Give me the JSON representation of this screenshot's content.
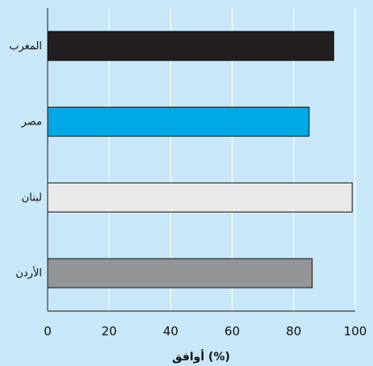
{
  "chart_data": {
    "type": "bar",
    "orientation": "horizontal",
    "categories": [
      "المغرب",
      "مصر",
      "لبنان",
      "الأردن"
    ],
    "values": [
      93,
      85,
      99,
      86
    ],
    "xlabel": "أوافق (%)",
    "xlim": [
      0,
      100
    ],
    "xticks": [
      0,
      20,
      40,
      60,
      80,
      100
    ],
    "xtick_labels": [
      "0",
      "20",
      "40",
      "60",
      "80",
      "100"
    ],
    "grid": "vertical",
    "colors": {
      "background": "#c8e7f8",
      "grid": "#ffffff",
      "bar_outline": "#111111",
      "bars": [
        "#231f20",
        "#00a9e6",
        "#e9e9ea",
        "#949597"
      ]
    }
  }
}
